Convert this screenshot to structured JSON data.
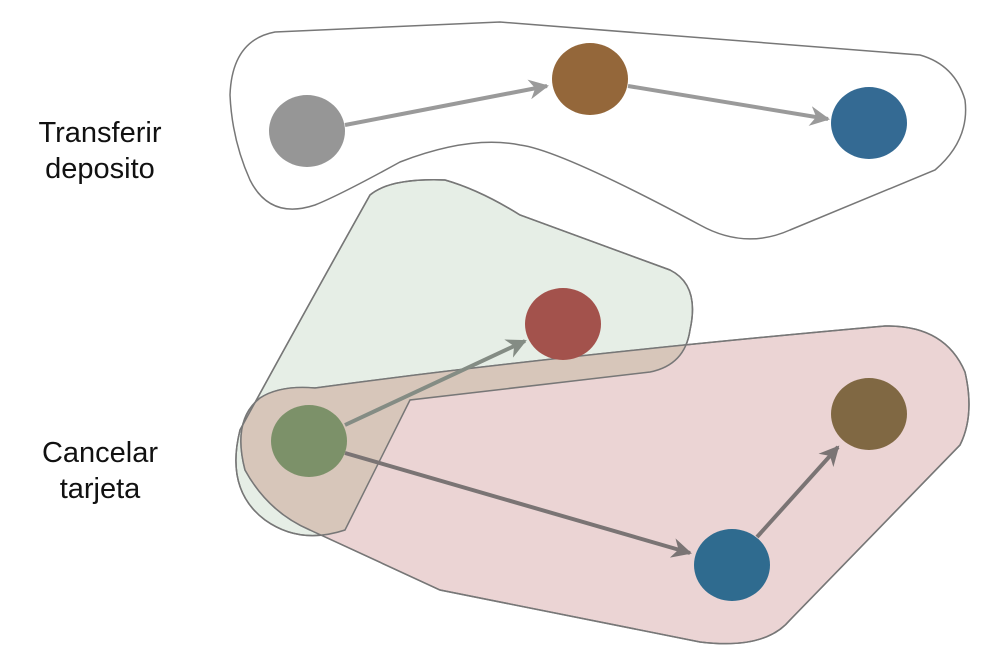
{
  "labels": {
    "transfer": {
      "line1": "Transferir",
      "line2": "deposito"
    },
    "cancel": {
      "line1": "Cancelar",
      "line2": "tarjeta"
    }
  },
  "colors": {
    "outline": "#777777",
    "green_region_fill": "#e6eee6",
    "pink_region_fill": "#e8cccc",
    "overlap_fill": "#d7c6ba",
    "arrow_gray": "#9a9a9a",
    "arrow_dark": "#7a7474",
    "arrow_green": "#848c84",
    "node_gray": "#969696",
    "node_brown": "#94673a",
    "node_blue": "#346a93",
    "node_red": "#a3524c",
    "node_green": "#7c9169",
    "node_olive": "#806843",
    "node_teal": "#2f6b8f"
  },
  "nodes": [
    {
      "id": "transfer-start",
      "color_key": "node_gray"
    },
    {
      "id": "transfer-middle",
      "color_key": "node_brown"
    },
    {
      "id": "transfer-end",
      "color_key": "node_blue"
    },
    {
      "id": "cancel-red",
      "color_key": "node_red"
    },
    {
      "id": "cancel-start",
      "color_key": "node_green"
    },
    {
      "id": "cancel-blue",
      "color_key": "node_teal"
    },
    {
      "id": "cancel-olive",
      "color_key": "node_olive"
    }
  ],
  "edges": [
    {
      "from": "transfer-start",
      "to": "transfer-middle"
    },
    {
      "from": "transfer-middle",
      "to": "transfer-end"
    },
    {
      "from": "cancel-start",
      "to": "cancel-red"
    },
    {
      "from": "cancel-start",
      "to": "cancel-blue"
    },
    {
      "from": "cancel-blue",
      "to": "cancel-olive"
    }
  ]
}
